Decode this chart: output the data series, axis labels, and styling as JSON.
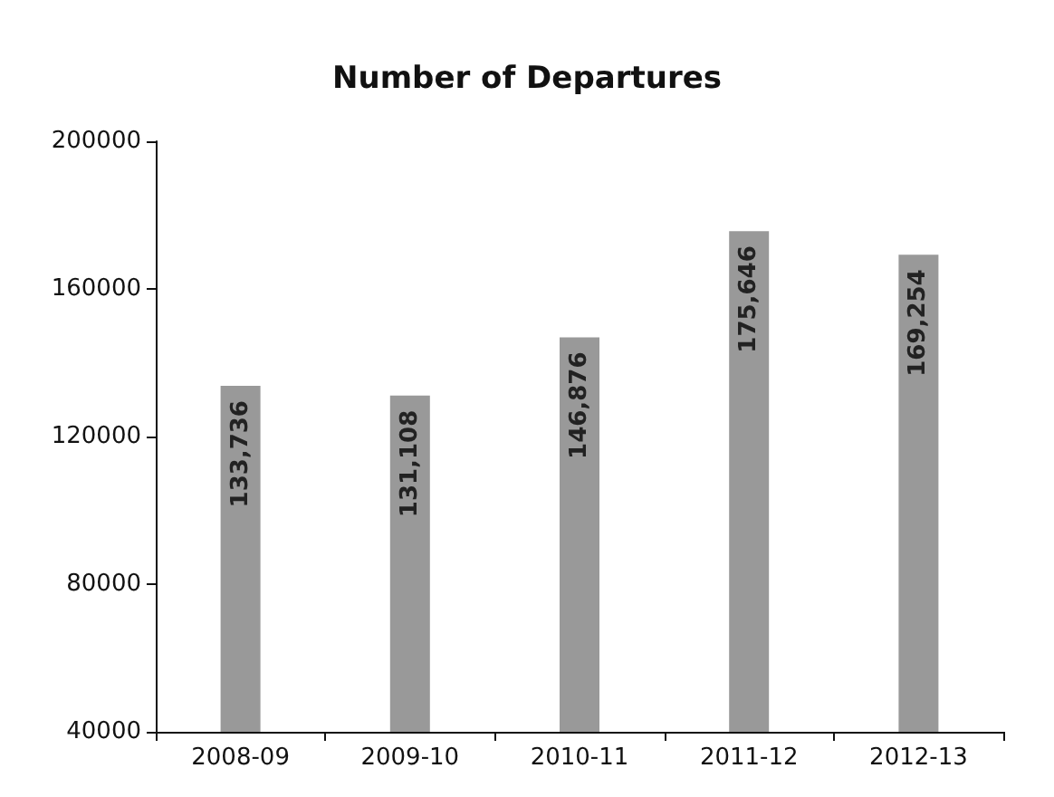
{
  "chart_data": {
    "type": "bar",
    "title": "Number of Departures",
    "categories": [
      "2008-09",
      "2009-10",
      "2010-11",
      "2011-12",
      "2012-13"
    ],
    "values": [
      133736,
      131108,
      146876,
      175646,
      169254
    ],
    "value_labels": [
      "133,736",
      "131,108",
      "146,876",
      "175,646",
      "169,254"
    ],
    "color": "#999999",
    "ylim": [
      40000,
      200000
    ],
    "yticks": [
      40000,
      80000,
      120000,
      160000,
      200000
    ],
    "grid": false
  }
}
